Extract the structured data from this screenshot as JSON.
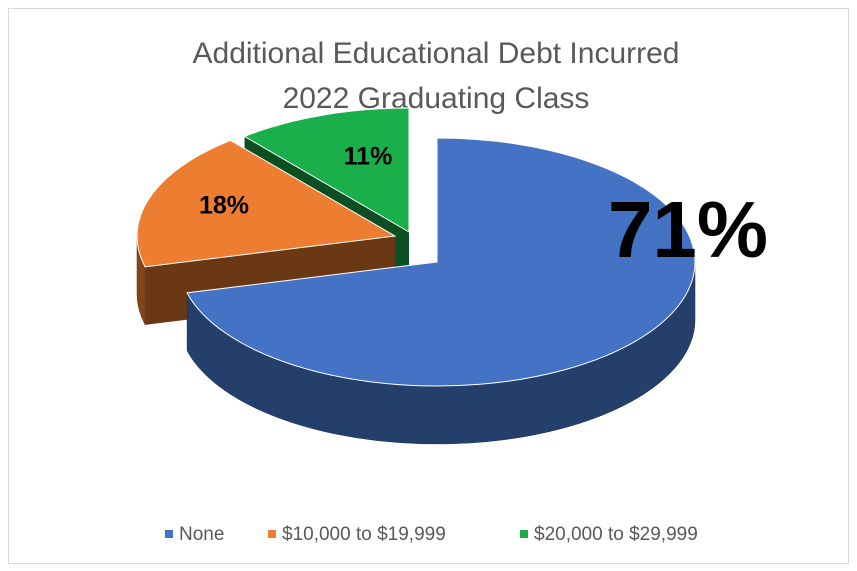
{
  "chart_data": {
    "type": "pie3d",
    "title": [
      "Additional Educational Debt Incurred",
      "2022 Graduating Class"
    ],
    "categories": [
      "None",
      "$10,000 to $19,999",
      "$20,000 to $29,999"
    ],
    "values": [
      71,
      18,
      11
    ],
    "value_labels": [
      "71%",
      "18%",
      "11%"
    ],
    "colors": [
      "#4472c4",
      "#ed7d31",
      "#1aaf4b"
    ],
    "legend": "bottom"
  }
}
